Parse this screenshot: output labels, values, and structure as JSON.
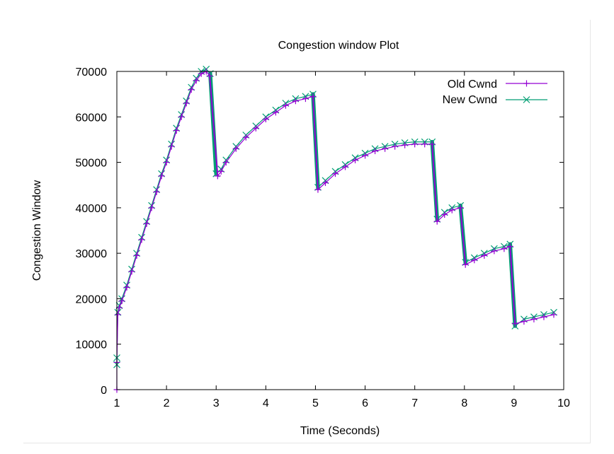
{
  "chart_data": {
    "type": "line",
    "title": "Congestion window Plot",
    "xlabel": "Time (Seconds)",
    "ylabel": "Congestion Window",
    "xlim": [
      1,
      10
    ],
    "ylim": [
      0,
      70000
    ],
    "xticks": [
      1,
      2,
      3,
      4,
      5,
      6,
      7,
      8,
      9,
      10
    ],
    "yticks": [
      0,
      10000,
      20000,
      30000,
      40000,
      50000,
      60000,
      70000
    ],
    "grid": false,
    "legend_position": "top-right",
    "series": [
      {
        "name": "Old Cwnd",
        "color": "#9400d3",
        "marker": "plus",
        "x": [
          1.0,
          1.0,
          1.02,
          1.05,
          1.1,
          1.2,
          1.3,
          1.4,
          1.5,
          1.6,
          1.7,
          1.8,
          1.9,
          2.0,
          2.1,
          2.2,
          2.3,
          2.4,
          2.5,
          2.6,
          2.7,
          2.8,
          2.87,
          3.03,
          3.1,
          3.2,
          3.4,
          3.6,
          3.8,
          4.0,
          4.2,
          4.4,
          4.6,
          4.8,
          4.95,
          5.05,
          5.2,
          5.4,
          5.6,
          5.8,
          6.0,
          6.2,
          6.4,
          6.6,
          6.8,
          7.0,
          7.2,
          7.35,
          7.45,
          7.6,
          7.75,
          7.92,
          8.02,
          8.2,
          8.4,
          8.6,
          8.8,
          8.92,
          9.02,
          9.2,
          9.4,
          9.6,
          9.8
        ],
        "y": [
          0,
          6000,
          16500,
          18000,
          19500,
          22500,
          26000,
          29500,
          33000,
          36500,
          40000,
          43500,
          47000,
          50000,
          53500,
          57000,
          60000,
          63000,
          66000,
          68000,
          69500,
          70000,
          69000,
          47000,
          48000,
          50000,
          53000,
          55500,
          57500,
          59500,
          61000,
          62500,
          63500,
          64000,
          64500,
          44000,
          45500,
          47500,
          49000,
          50500,
          51500,
          52500,
          53000,
          53500,
          53800,
          54000,
          54000,
          54000,
          37000,
          38500,
          39500,
          40000,
          27500,
          28500,
          29500,
          30500,
          31000,
          31500,
          14500,
          15000,
          15500,
          16000,
          16500
        ]
      },
      {
        "name": "New Cwnd",
        "color": "#009e73",
        "marker": "cross",
        "x": [
          1.0,
          1.0,
          1.02,
          1.05,
          1.1,
          1.2,
          1.3,
          1.4,
          1.5,
          1.6,
          1.7,
          1.8,
          1.9,
          2.0,
          2.1,
          2.2,
          2.3,
          2.4,
          2.5,
          2.6,
          2.7,
          2.8,
          2.88,
          3.0,
          3.1,
          3.2,
          3.4,
          3.6,
          3.8,
          4.0,
          4.2,
          4.4,
          4.6,
          4.8,
          4.95,
          5.05,
          5.2,
          5.4,
          5.6,
          5.8,
          6.0,
          6.2,
          6.4,
          6.6,
          6.8,
          7.0,
          7.2,
          7.35,
          7.45,
          7.6,
          7.75,
          7.92,
          8.02,
          8.2,
          8.4,
          8.6,
          8.8,
          8.92,
          9.02,
          9.2,
          9.4,
          9.6,
          9.8
        ],
        "y": [
          5500,
          7000,
          17000,
          18500,
          20000,
          23000,
          26500,
          30000,
          33500,
          37000,
          40500,
          44000,
          47500,
          50500,
          54000,
          57500,
          60500,
          63500,
          66500,
          68500,
          70000,
          70500,
          69500,
          47500,
          48500,
          50500,
          53500,
          56000,
          58000,
          60000,
          61500,
          63000,
          64000,
          64500,
          65000,
          44500,
          46000,
          48000,
          49500,
          51000,
          52000,
          53000,
          53500,
          54000,
          54300,
          54500,
          54500,
          54500,
          37500,
          39000,
          40000,
          40500,
          28000,
          29000,
          30000,
          31000,
          31500,
          32000,
          14000,
          15500,
          16000,
          16500,
          17000
        ]
      }
    ]
  }
}
